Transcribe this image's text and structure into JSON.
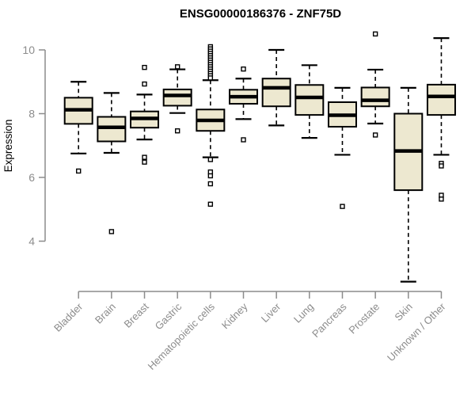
{
  "chart_data": {
    "type": "boxplot",
    "title": "ENSG00000186376 - ZNF75D",
    "ylabel": "Expression",
    "ylim": [
      4,
      10
    ],
    "yticks": [
      4,
      6,
      8,
      10
    ],
    "grid": false,
    "legend": "none",
    "categories": [
      "Bladder",
      "Brain",
      "Breast",
      "Gastric",
      "Hematopoietic cells",
      "Kidney",
      "Liver",
      "Lung",
      "Pancreas",
      "Prostate",
      "Skin",
      "Unknown / Other"
    ],
    "series": [
      {
        "name": "Bladder",
        "low": 6.75,
        "q1": 7.68,
        "median": 8.12,
        "q3": 8.5,
        "high": 9.0,
        "outliers": [
          6.2
        ]
      },
      {
        "name": "Brain",
        "low": 6.77,
        "q1": 7.13,
        "median": 7.57,
        "q3": 7.9,
        "high": 8.65,
        "outliers": [
          4.3
        ]
      },
      {
        "name": "Breast",
        "low": 7.19,
        "q1": 7.56,
        "median": 7.85,
        "q3": 8.07,
        "high": 8.6,
        "outliers": [
          9.45,
          8.93,
          6.63,
          6.48
        ]
      },
      {
        "name": "Gastric",
        "low": 8.02,
        "q1": 8.25,
        "median": 8.57,
        "q3": 8.76,
        "high": 9.39,
        "outliers": [
          9.47,
          7.46
        ]
      },
      {
        "name": "Hematopoietic cells",
        "low": 6.63,
        "q1": 7.46,
        "median": 7.79,
        "q3": 8.13,
        "high": 9.05,
        "outliers": [
          10.1,
          10.03,
          9.96,
          9.89,
          9.82,
          9.75,
          9.68,
          9.61,
          9.54,
          9.47,
          9.4,
          9.33,
          9.26,
          9.19,
          9.12,
          6.56,
          6.17,
          6.05,
          5.8,
          5.16
        ]
      },
      {
        "name": "Kidney",
        "low": 7.83,
        "q1": 8.31,
        "median": 8.53,
        "q3": 8.75,
        "high": 9.1,
        "outliers": [
          9.4,
          7.18
        ]
      },
      {
        "name": "Liver",
        "low": 7.63,
        "q1": 8.23,
        "median": 8.81,
        "q3": 9.1,
        "high": 10.0,
        "outliers": []
      },
      {
        "name": "Lung",
        "low": 7.24,
        "q1": 7.96,
        "median": 8.51,
        "q3": 8.9,
        "high": 9.52,
        "outliers": []
      },
      {
        "name": "Pancreas",
        "low": 6.71,
        "q1": 7.59,
        "median": 7.95,
        "q3": 8.36,
        "high": 8.81,
        "outliers": [
          5.09
        ]
      },
      {
        "name": "Prostate",
        "low": 7.69,
        "q1": 8.23,
        "median": 8.42,
        "q3": 8.82,
        "high": 9.38,
        "outliers": [
          10.5,
          7.33
        ]
      },
      {
        "name": "Skin",
        "low": 2.73,
        "q1": 5.6,
        "median": 6.83,
        "q3": 8.0,
        "high": 8.81,
        "outliers": []
      },
      {
        "name": "Unknown / Other",
        "low": 6.71,
        "q1": 7.96,
        "median": 8.54,
        "q3": 8.91,
        "high": 10.37,
        "outliers": [
          6.44,
          6.36,
          5.44,
          5.32
        ]
      }
    ]
  },
  "styles": {
    "box_fill": "#EDE8D0",
    "box_stroke": "#000000",
    "median_color": "#000000",
    "whisker_color": "#000000",
    "outlier_stroke": "#000000",
    "axis_color": "#8C8C8C",
    "tick_label_color": "#8C8C8C",
    "title_color": "#000000",
    "background": "#FFFFFF"
  }
}
